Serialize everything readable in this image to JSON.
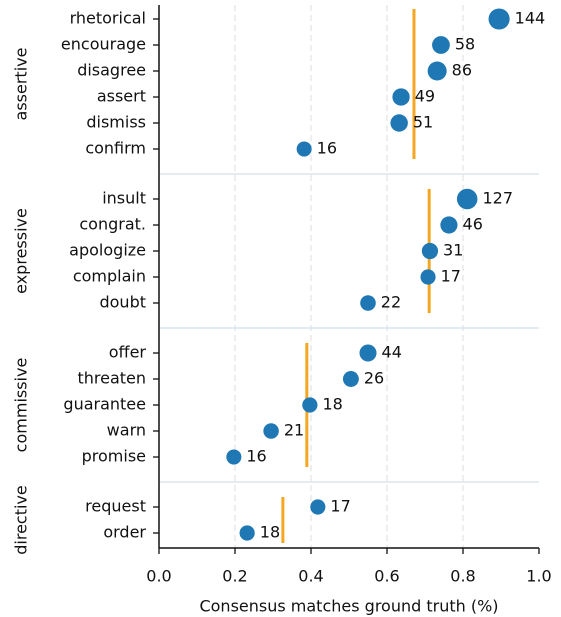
{
  "chart_data": {
    "type": "dot",
    "xlabel": "Consensus matches ground truth (%)",
    "xlim": [
      0,
      1.0
    ],
    "xticks": [
      {
        "value": 0,
        "label": "0.0"
      },
      0.2,
      0.4,
      0.6,
      0.8,
      {
        "value": 1.0,
        "label": "1.0"
      }
    ],
    "grid": true,
    "color": "#1f77b4",
    "mean_color": "#f5a623",
    "groups": [
      {
        "name": "assertive",
        "mean": 0.671,
        "categories": [
          "rhetorical",
          "encourage",
          "disagree",
          "assert",
          "dismiss",
          "confirm"
        ],
        "values": [
          0.895,
          0.742,
          0.732,
          0.637,
          0.632,
          0.382
        ],
        "counts": [
          144,
          58,
          86,
          49,
          51,
          16
        ]
      },
      {
        "name": "expressive",
        "mean": 0.711,
        "categories": [
          "insult",
          "congrat.",
          "apologize",
          "complain",
          "doubt"
        ],
        "values": [
          0.811,
          0.763,
          0.713,
          0.708,
          0.55
        ],
        "counts": [
          127,
          46,
          31,
          17,
          22
        ]
      },
      {
        "name": "commissive",
        "mean": 0.389,
        "categories": [
          "offer",
          "threaten",
          "guarantee",
          "warn",
          "promise"
        ],
        "values": [
          0.55,
          0.505,
          0.397,
          0.295,
          0.197
        ],
        "counts": [
          44,
          26,
          18,
          21,
          16
        ]
      },
      {
        "name": "directive",
        "mean": 0.326,
        "categories": [
          "request",
          "order"
        ],
        "values": [
          0.418,
          0.232
        ],
        "counts": [
          17,
          18
        ]
      }
    ]
  }
}
